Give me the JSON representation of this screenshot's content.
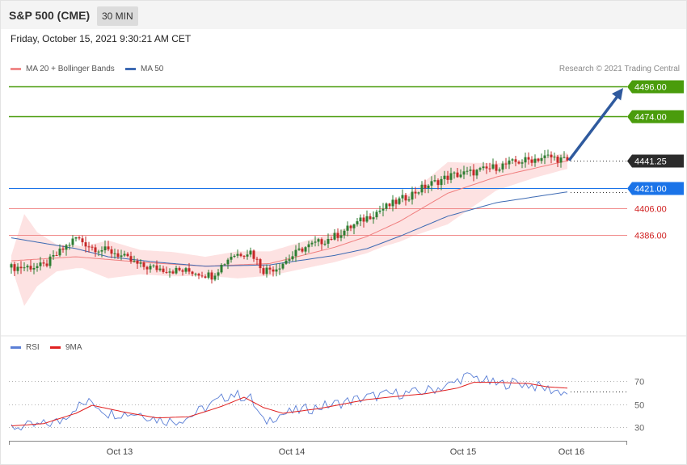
{
  "header": {
    "symbol": "S&P 500 (CME)",
    "timeframe": "30 MIN"
  },
  "datetime": "Friday, October 15, 2021 9:30:21 AM CET",
  "legend": {
    "ma20": "MA 20 + Bollinger Bands",
    "ma50": "MA 50",
    "rsi": "RSI",
    "rsi_ma": "9MA"
  },
  "credit": "Research © 2021 Trading Central",
  "colors": {
    "resistance": "#4a9c0c",
    "support": "#f08a8a",
    "pivot": "#1a73e8",
    "ma20": "#f07e7e",
    "ma50": "#3d6ab3",
    "bull": "#2e7d32",
    "bear": "#c62828",
    "arrow": "#2f5a9e",
    "rsi": "#5b7fd6",
    "rsi_ma": "#e02020"
  },
  "chart_data": [
    {
      "type": "candlestick",
      "title": "S&P 500 (CME)",
      "interval": "30 MIN",
      "x_labels": [
        "Oct 13",
        "Oct 14",
        "Oct 15",
        "Oct 16"
      ],
      "y_range": [
        4344,
        4503
      ],
      "last_price": {
        "label": "4441.25",
        "value": 4441.25
      },
      "levels": [
        {
          "label": "4496.00",
          "value": 4496,
          "kind": "resistance"
        },
        {
          "label": "4474.00",
          "value": 4474,
          "kind": "resistance"
        },
        {
          "label": "4421.00",
          "value": 4421,
          "kind": "pivot"
        },
        {
          "label": "4406.00",
          "value": 4406,
          "kind": "support"
        },
        {
          "label": "4386.00",
          "value": 4386,
          "kind": "support"
        }
      ],
      "close_anchors": [
        [
          0,
          4362
        ],
        [
          10,
          4363
        ],
        [
          20,
          4384
        ],
        [
          25,
          4377
        ],
        [
          32,
          4373
        ],
        [
          40,
          4363
        ],
        [
          50,
          4360
        ],
        [
          56,
          4359
        ],
        [
          62,
          4356
        ],
        [
          68,
          4371
        ],
        [
          74,
          4374
        ],
        [
          78,
          4360
        ],
        [
          82,
          4362
        ],
        [
          90,
          4376
        ],
        [
          100,
          4385
        ],
        [
          112,
          4402
        ],
        [
          122,
          4414
        ],
        [
          128,
          4422
        ],
        [
          136,
          4430
        ],
        [
          144,
          4433
        ],
        [
          156,
          4440
        ],
        [
          166,
          4444
        ],
        [
          172,
          4441
        ]
      ],
      "ma20_anchors": [
        [
          0,
          4367
        ],
        [
          20,
          4370
        ],
        [
          40,
          4366
        ],
        [
          60,
          4363
        ],
        [
          80,
          4365
        ],
        [
          100,
          4377
        ],
        [
          110,
          4385
        ],
        [
          120,
          4396
        ],
        [
          135,
          4417
        ],
        [
          150,
          4429
        ],
        [
          172,
          4441
        ]
      ],
      "ma50_anchors": [
        [
          0,
          4384
        ],
        [
          10,
          4380
        ],
        [
          20,
          4376
        ],
        [
          30,
          4370
        ],
        [
          45,
          4366
        ],
        [
          60,
          4363
        ],
        [
          80,
          4364
        ],
        [
          100,
          4371
        ],
        [
          110,
          4376
        ],
        [
          120,
          4385
        ],
        [
          135,
          4400
        ],
        [
          150,
          4410
        ],
        [
          172,
          4418
        ]
      ],
      "band_halfwidth_anchors": [
        [
          0,
          4
        ],
        [
          4,
          34
        ],
        [
          8,
          20
        ],
        [
          14,
          10
        ],
        [
          22,
          8
        ],
        [
          30,
          14
        ],
        [
          40,
          9
        ],
        [
          50,
          9
        ],
        [
          60,
          7
        ],
        [
          70,
          10
        ],
        [
          80,
          9
        ],
        [
          100,
          11
        ],
        [
          115,
          13
        ],
        [
          125,
          17
        ],
        [
          135,
          23
        ],
        [
          150,
          10
        ],
        [
          162,
          7
        ],
        [
          172,
          6
        ]
      ],
      "projection": {
        "from": 4441.25,
        "to": 4496
      }
    },
    {
      "type": "line",
      "title": "RSI",
      "yticks": [
        30,
        50,
        70
      ],
      "ylim": [
        20,
        90
      ],
      "series": [
        {
          "name": "RSI",
          "anchors": [
            [
              0,
              30
            ],
            [
              8,
              31
            ],
            [
              15,
              35
            ],
            [
              20,
              48
            ],
            [
              25,
              52
            ],
            [
              30,
              42
            ],
            [
              40,
              42
            ],
            [
              45,
              37
            ],
            [
              50,
              35
            ],
            [
              55,
              39
            ],
            [
              62,
              50
            ],
            [
              68,
              59
            ],
            [
              74,
              55
            ],
            [
              78,
              34
            ],
            [
              82,
              40
            ],
            [
              90,
              45
            ],
            [
              100,
              50
            ],
            [
              110,
              56
            ],
            [
              118,
              59
            ],
            [
              126,
              60
            ],
            [
              136,
              67
            ],
            [
              140,
              74
            ],
            [
              144,
              73
            ],
            [
              150,
              67
            ],
            [
              156,
              69
            ],
            [
              160,
              67
            ],
            [
              166,
              63
            ],
            [
              170,
              61
            ],
            [
              172,
              60
            ]
          ]
        },
        {
          "name": "9MA",
          "anchors": [
            [
              0,
              31
            ],
            [
              10,
              33
            ],
            [
              20,
              42
            ],
            [
              25,
              49
            ],
            [
              35,
              43
            ],
            [
              45,
              38
            ],
            [
              55,
              39
            ],
            [
              65,
              48
            ],
            [
              72,
              56
            ],
            [
              78,
              47
            ],
            [
              84,
              42
            ],
            [
              95,
              46
            ],
            [
              110,
              54
            ],
            [
              120,
              57
            ],
            [
              128,
              59
            ],
            [
              138,
              64
            ],
            [
              143,
              69
            ],
            [
              150,
              69
            ],
            [
              160,
              68
            ],
            [
              166,
              65
            ],
            [
              172,
              64
            ]
          ]
        }
      ]
    }
  ]
}
